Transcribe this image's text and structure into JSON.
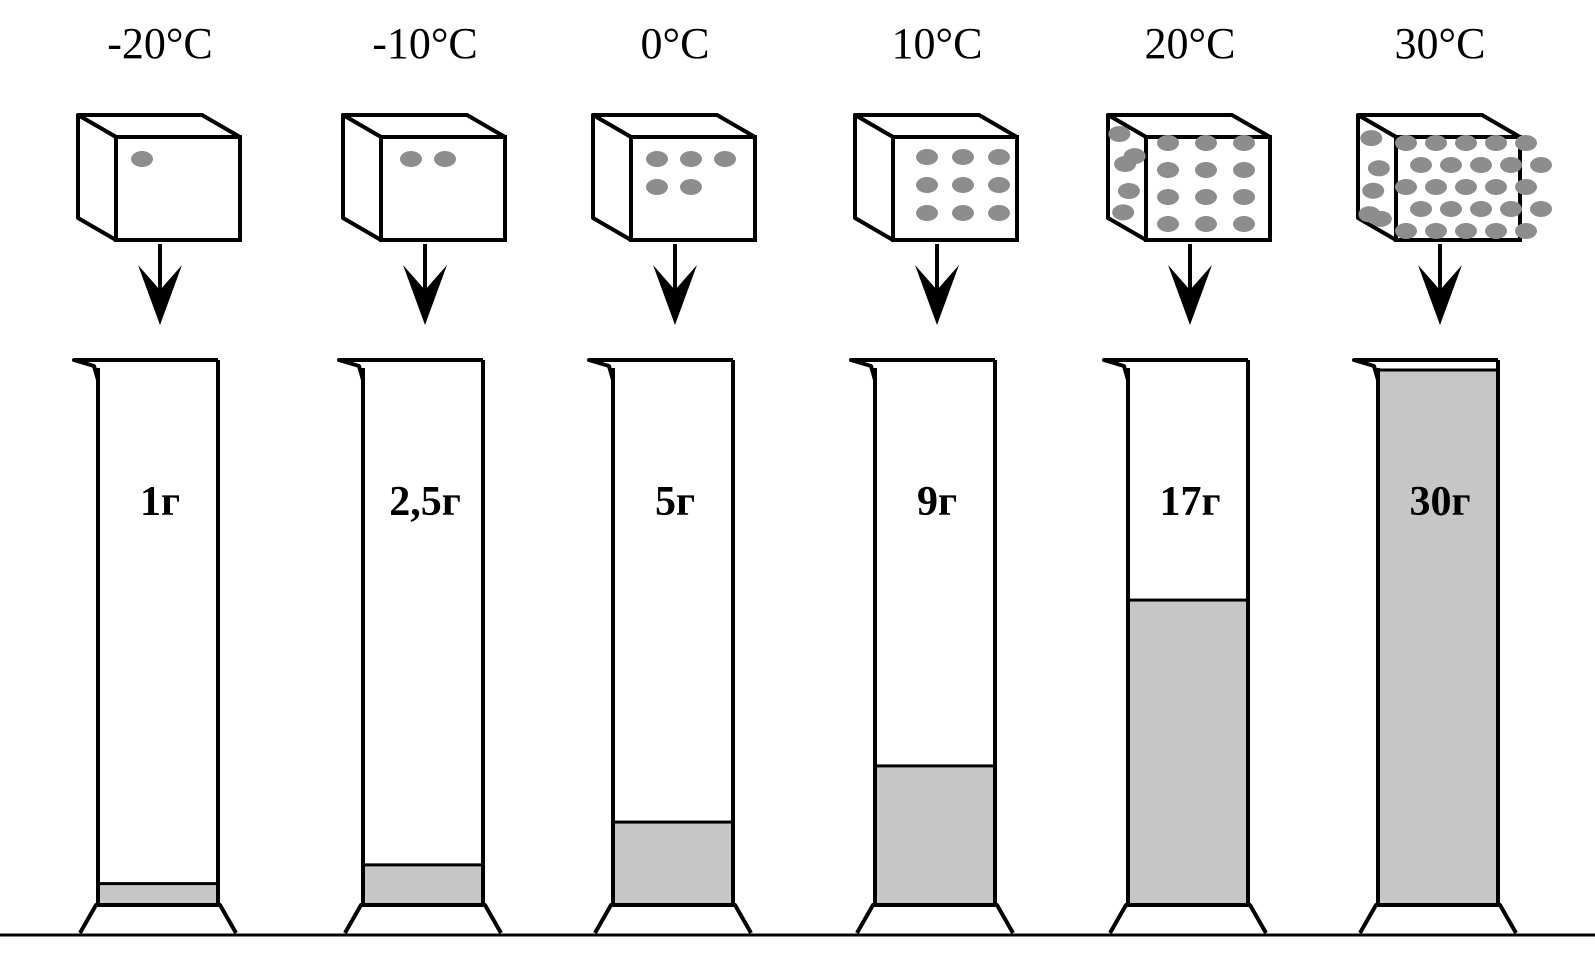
{
  "diagram": {
    "columns": [
      {
        "temperature": "-20°C",
        "mass_label": "1г",
        "dots": 1,
        "fill_fraction": 0.04
      },
      {
        "temperature": "-10°C",
        "mass_label": "2,5г",
        "dots": 2,
        "fill_fraction": 0.075
      },
      {
        "temperature": "0°C",
        "mass_label": "5г",
        "dots": 5,
        "fill_fraction": 0.155
      },
      {
        "temperature": "10°C",
        "mass_label": "9г",
        "dots": 9,
        "fill_fraction": 0.26
      },
      {
        "temperature": "20°C",
        "mass_label": "17г",
        "dots": 17,
        "fill_fraction": 0.57
      },
      {
        "temperature": "30°C",
        "mass_label": "30г",
        "dots": 30,
        "fill_fraction": 1.0
      }
    ]
  }
}
